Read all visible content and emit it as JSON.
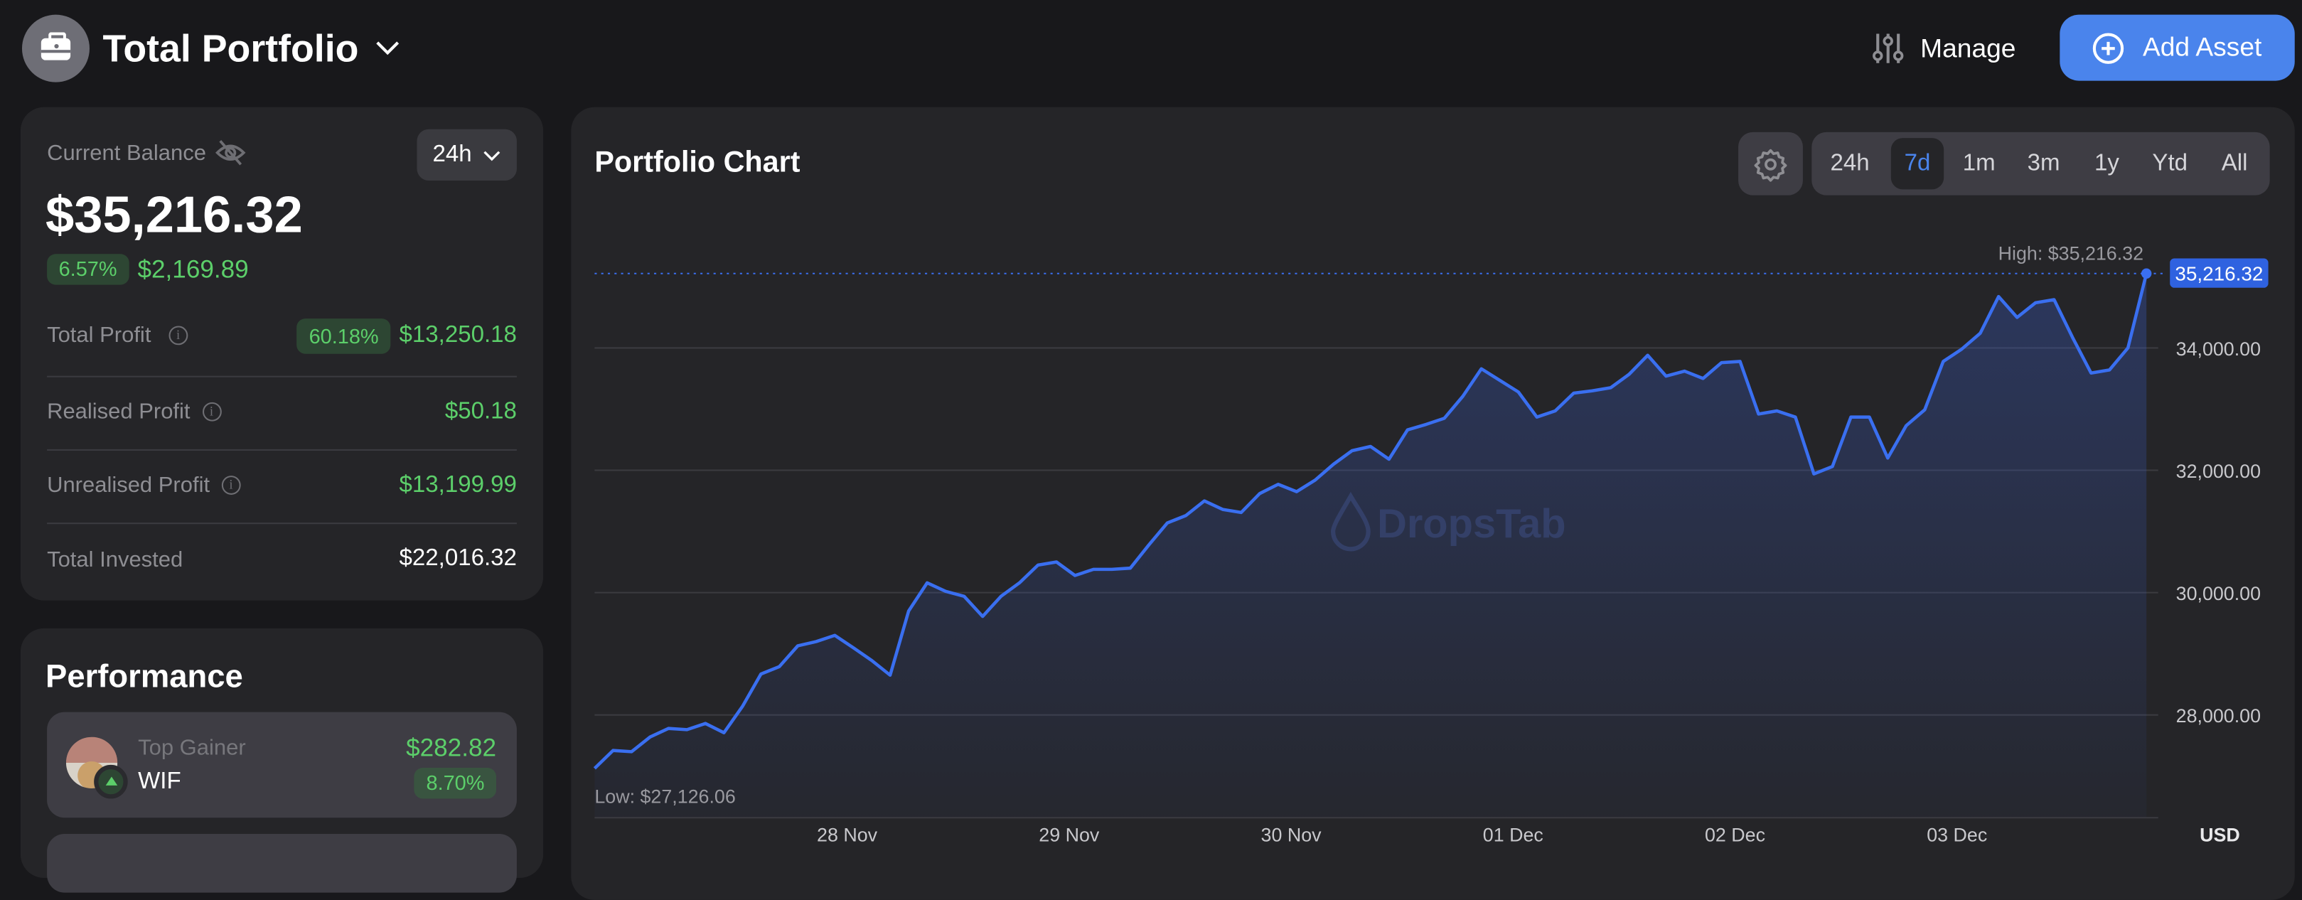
{
  "header": {
    "title": "Total Portfolio",
    "icon": "briefcase-icon",
    "manage_label": "Manage",
    "add_asset_label": "Add Asset"
  },
  "balance": {
    "label": "Current Balance",
    "period": "24h",
    "value": "$35,216.32",
    "change_pct": "6.57%",
    "change_value": "$2,169.89",
    "rows": [
      {
        "label": "Total Profit",
        "pct": "60.18%",
        "value": "$13,250.18",
        "info": true
      },
      {
        "label": "Realised Profit",
        "value": "$50.18",
        "info": true
      },
      {
        "label": "Unrealised Profit",
        "value": "$13,199.99",
        "info": true
      },
      {
        "label": "Total Invested",
        "value": "$22,016.32",
        "info": false
      }
    ]
  },
  "performance": {
    "title": "Performance",
    "top_gainer": {
      "label": "Top Gainer",
      "symbol": "WIF",
      "value": "$282.82",
      "pct": "8.70%"
    }
  },
  "chart": {
    "title": "Portfolio Chart",
    "ranges": [
      "24h",
      "7d",
      "1m",
      "3m",
      "1y",
      "Ytd",
      "All"
    ],
    "active_range": "7d",
    "high_label": "High: $35,216.32",
    "low_label": "Low: $27,126.06",
    "current_tag": "35,216.32",
    "currency": "USD",
    "watermark": "DropsTab"
  },
  "colors": {
    "accent": "#4a84ec",
    "line": "#3a6ff0",
    "positive": "#5ccf6a",
    "tag": "#2f62e0"
  },
  "chart_data": {
    "type": "area",
    "x_start": "26 Nov 21:00",
    "x_end": "03 Dec 21:00",
    "x_interval": "2h",
    "x_tick_labels": [
      "28 Nov",
      "29 Nov",
      "30 Nov",
      "01 Dec",
      "02 Dec",
      "03 Dec"
    ],
    "y_tick_labels": [
      "28,000.00",
      "30,000.00",
      "32,000.00",
      "34,000.00"
    ],
    "y_ticks": [
      28000,
      30000,
      32000,
      34000
    ],
    "ylim": [
      27000,
      35500
    ],
    "grid": true,
    "high": 35216.32,
    "low": 27126.06,
    "values": [
      27126.06,
      27420,
      27400,
      27640,
      27780,
      27760,
      27860,
      27710,
      28140,
      28670,
      28790,
      29130,
      29200,
      29300,
      29100,
      28890,
      28650,
      29700,
      30160,
      30020,
      29940,
      29610,
      29940,
      30160,
      30450,
      30500,
      30280,
      30380,
      30380,
      30400,
      30780,
      31140,
      31260,
      31500,
      31360,
      31310,
      31620,
      31770,
      31650,
      31840,
      32100,
      32320,
      32390,
      32180,
      32660,
      32750,
      32850,
      33210,
      33660,
      33470,
      33280,
      32870,
      32970,
      33260,
      33300,
      33350,
      33570,
      33880,
      33540,
      33620,
      33500,
      33760,
      33780,
      32920,
      32970,
      32870,
      31940,
      32060,
      32870,
      32870,
      32200,
      32730,
      32990,
      33780,
      33980,
      34240,
      34840,
      34500,
      34740,
      34790,
      34170,
      33590,
      33640,
      34000,
      35216.32
    ]
  }
}
